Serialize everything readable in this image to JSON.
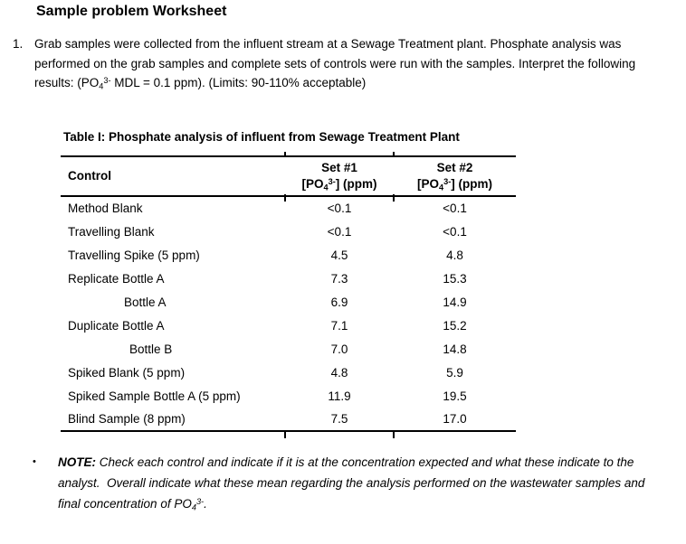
{
  "document": {
    "title": "Sample problem Worksheet",
    "question": {
      "number": "1.",
      "text_before_formula": "Grab samples were collected from the influent stream at a Sewage Treatment plant. Phosphate analysis was performed on the grab samples and complete sets of controls were run with the samples. Interpret the following results: (PO",
      "formula_subscript": "4",
      "formula_superscript": "3-",
      "text_after_formula": " MDL = 0.1 ppm). (Limits: 90-110% acceptable)"
    },
    "table": {
      "title": "Table I: Phosphate analysis of influent from Sewage Treatment Plant",
      "columns": {
        "control": "Control",
        "set1_title": "Set #1",
        "set2_title": "Set #2",
        "unit_prefix": "[PO",
        "unit_subscript": "4",
        "unit_superscript": "3-",
        "unit_suffix": "] (ppm)"
      },
      "rows": [
        {
          "control": "Method Blank",
          "set1": "<0.1",
          "set2": "<0.1"
        },
        {
          "control": "Travelling Blank",
          "set1": "<0.1",
          "set2": "<0.1"
        },
        {
          "control": "Travelling Spike (5 ppm)",
          "set1": "4.5",
          "set2": "4.8"
        },
        {
          "control": "Replicate Bottle A",
          "set1": "7.3",
          "set2": "15.3"
        },
        {
          "control": "Bottle A",
          "set1": "6.9",
          "set2": "14.9"
        },
        {
          "control": "Duplicate Bottle A",
          "set1": "7.1",
          "set2": "15.2"
        },
        {
          "control": "Bottle B",
          "set1": "7.0",
          "set2": "14.8"
        },
        {
          "control": "Spiked Blank (5 ppm)",
          "set1": "4.8",
          "set2": "5.9"
        },
        {
          "control": "Spiked Sample Bottle A (5 ppm)",
          "set1": "11.9",
          "set2": "19.5"
        },
        {
          "control": "Blind Sample (8 ppm)",
          "set1": "7.5",
          "set2": "17.0"
        }
      ]
    },
    "note": {
      "bullet": "•",
      "label": "NOTE:",
      "text_before_formula": " Check each control and indicate if it is at the concentration expected and what these indicate to the analyst.  Overall indicate what these mean regarding the analysis performed on the wastewater samples and final concentration of PO",
      "formula_subscript": "4",
      "formula_superscript": "3-",
      "text_after_formula": "."
    }
  }
}
